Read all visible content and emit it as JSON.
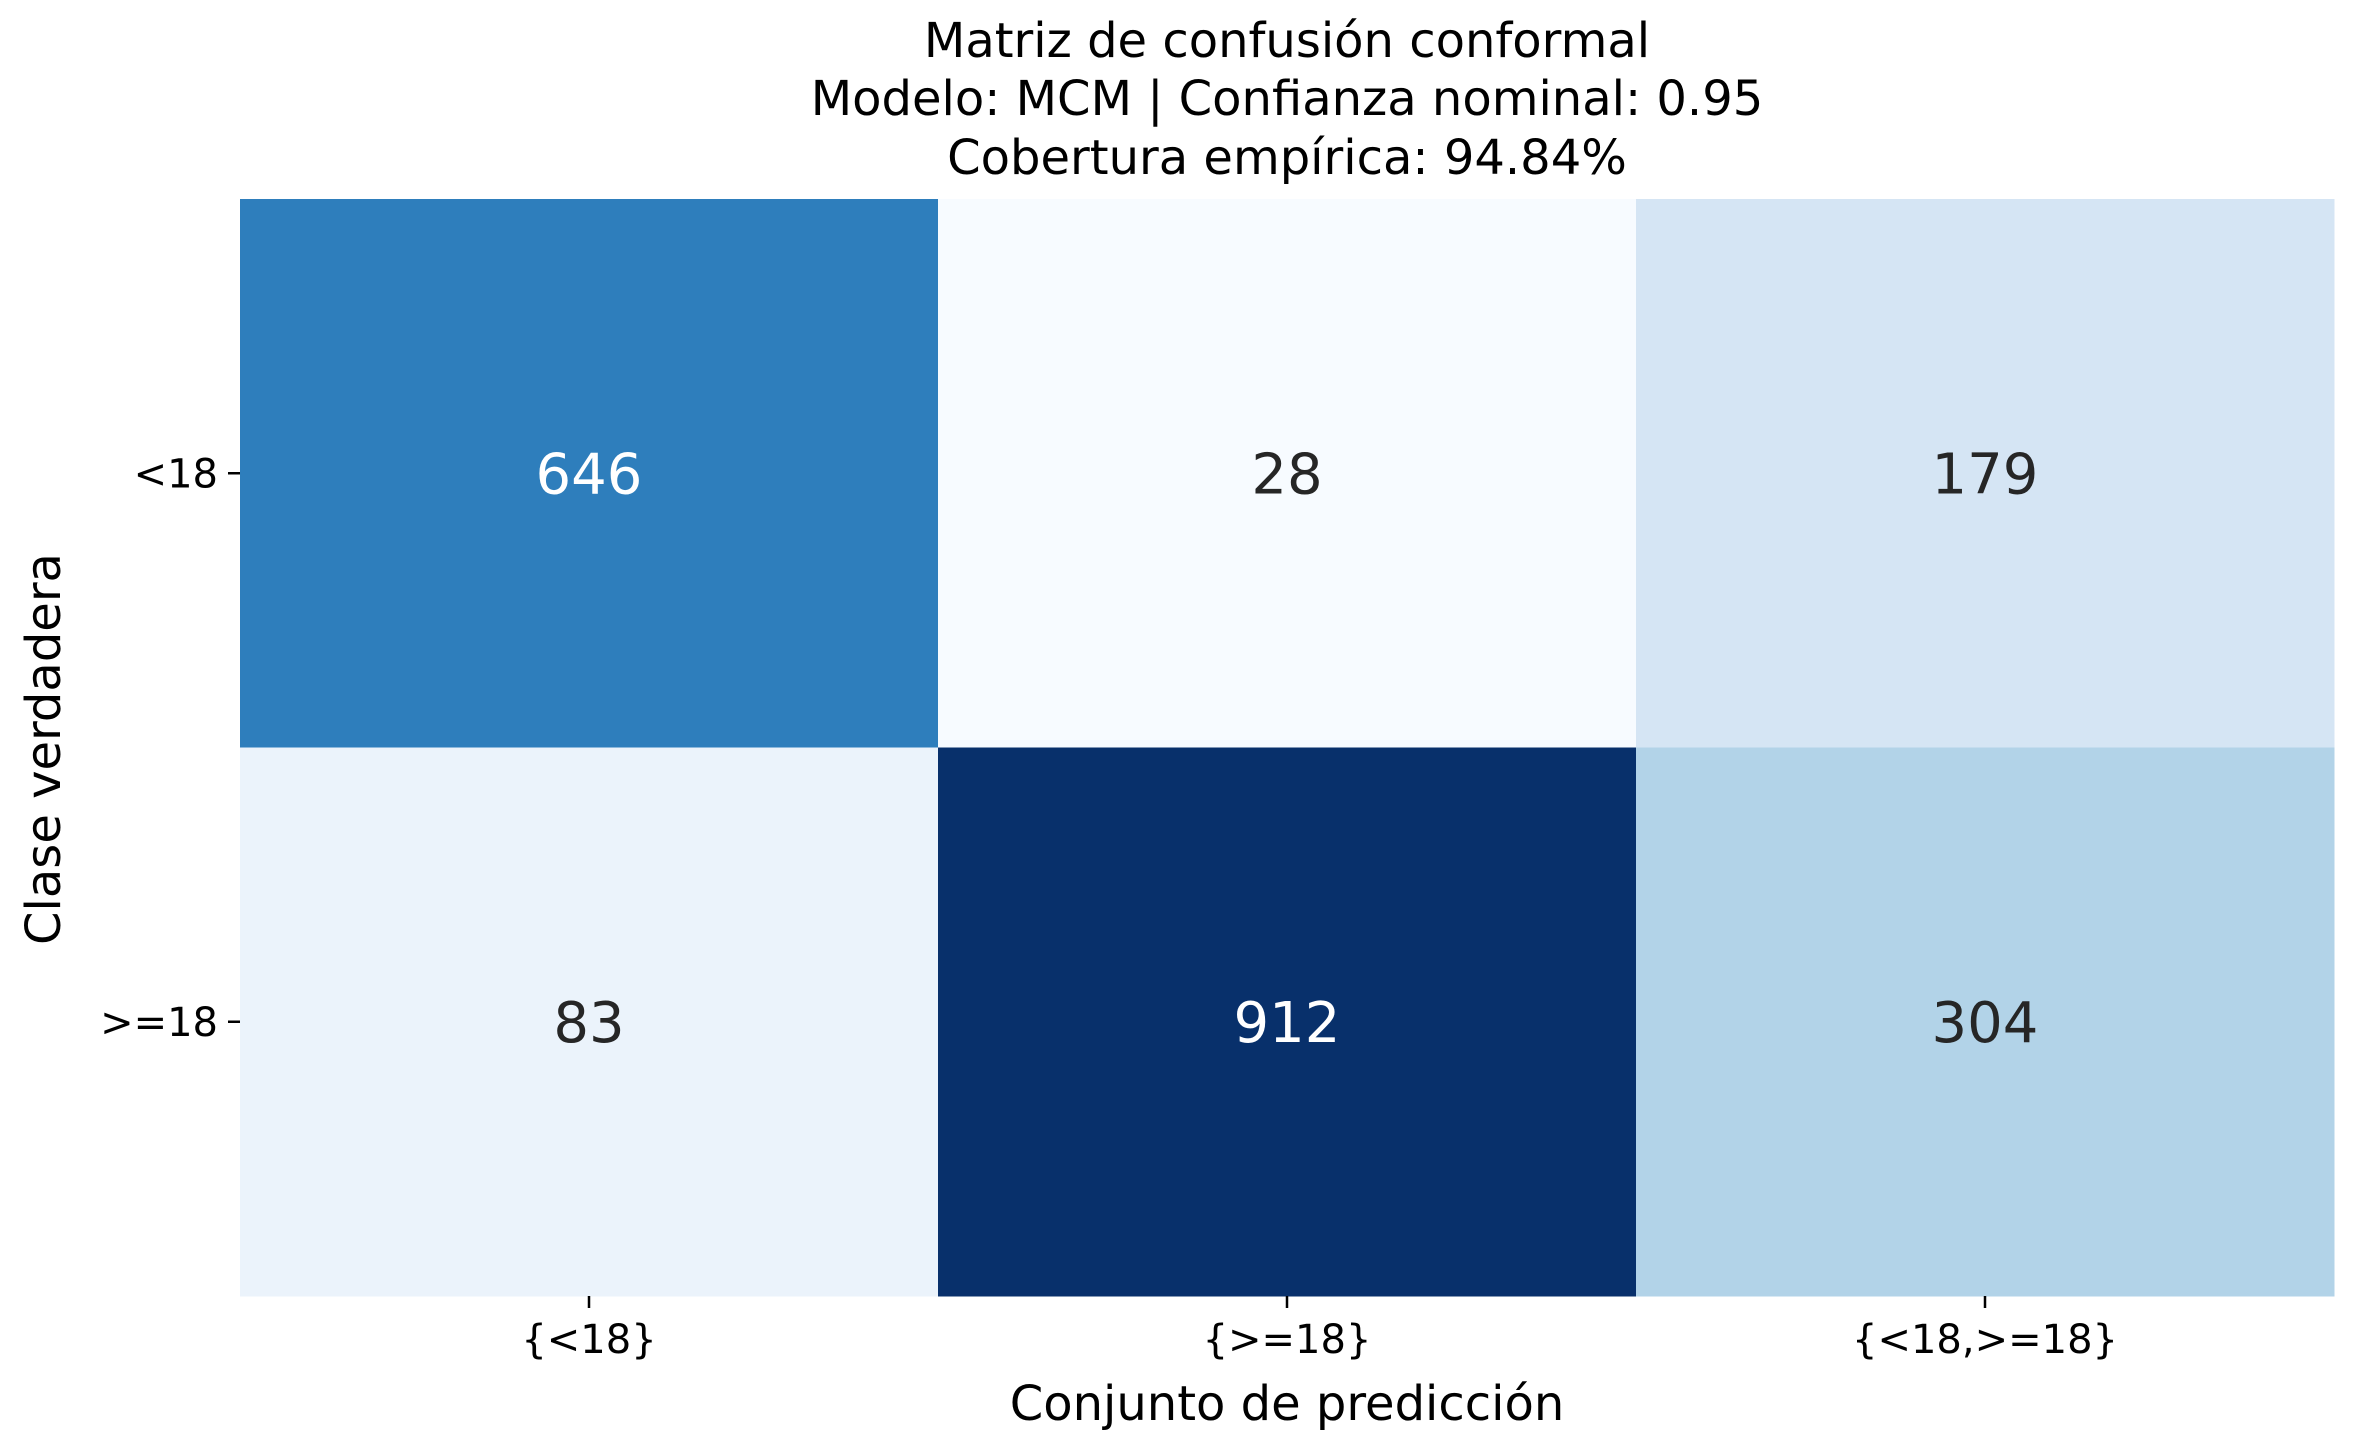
{
  "chart_data": {
    "type": "heatmap",
    "title": [
      "Matriz de confusión conformal",
      "Modelo: MCM | Confianza nominal: 0.95",
      "Cobertura empírica: 94.84%"
    ],
    "xlabel": "Conjunto de predicción",
    "ylabel": "Clase verdadera",
    "x_categories": [
      "{<18}",
      "{>=18}",
      "{<18,>=18}"
    ],
    "y_categories": [
      "<18",
      ">=18"
    ],
    "values": [
      [
        646,
        28,
        179
      ],
      [
        83,
        912,
        304
      ]
    ],
    "colormap": "Blues",
    "colorbar": false
  }
}
